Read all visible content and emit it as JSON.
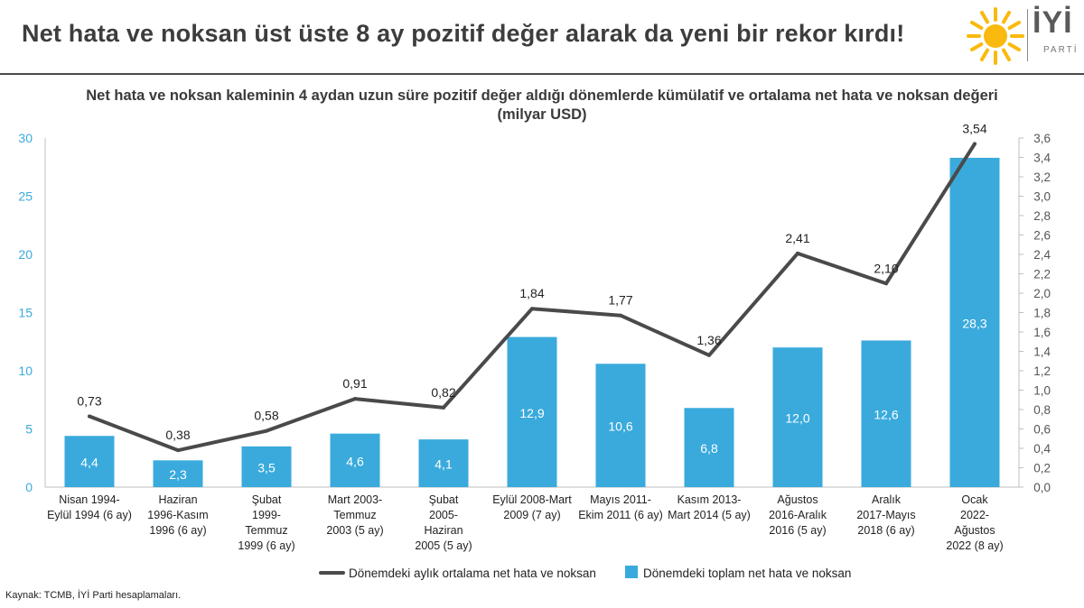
{
  "header": {
    "headline": "Net hata ve noksan üst üste 8 ay pozitif değer alarak da yeni bir rekor kırdı!",
    "logo_text": "İYİ",
    "logo_sub": "PARTİ",
    "accent_color": "#f9b90e"
  },
  "chart_data": {
    "type": "bar",
    "title": "Net hata ve noksan kaleminin 4 aydan uzun süre pozitif değer aldığı dönemlerde kümülatif ve ortalama net hata ve noksan değeri",
    "subtitle": "(milyar USD)",
    "categories": [
      [
        "Nisan 1994-",
        "Eylül 1994 (6 ay)"
      ],
      [
        "Haziran",
        "1996-Kasım",
        "1996 (6 ay)"
      ],
      [
        "Şubat",
        "1999-",
        "Temmuz",
        "1999 (6 ay)"
      ],
      [
        "Mart 2003-",
        "Temmuz",
        "2003 (5 ay)"
      ],
      [
        "Şubat",
        "2005-",
        "Haziran",
        "2005 (5 ay)"
      ],
      [
        "Eylül 2008-Mart",
        "2009 (7 ay)"
      ],
      [
        "Mayıs 2011-",
        "Ekim 2011 (6 ay)"
      ],
      [
        "Kasım 2013-",
        "Mart 2014 (5 ay)"
      ],
      [
        "Ağustos",
        "2016-Aralık",
        "2016 (5 ay)"
      ],
      [
        "Aralık",
        "2017-Mayıs",
        "2018 (6 ay)"
      ],
      [
        "Ocak",
        "2022-",
        "Ağustos",
        "2022 (8 ay)"
      ]
    ],
    "series": [
      {
        "name": "Dönemdeki toplam net hata ve noksan",
        "kind": "bar",
        "axis": "left",
        "color": "#3aaadc",
        "values": [
          4.4,
          2.3,
          3.5,
          4.6,
          4.1,
          12.9,
          10.6,
          6.8,
          12.0,
          12.6,
          28.3
        ],
        "labels": [
          "4,4",
          "2,3",
          "3,5",
          "4,6",
          "4,1",
          "12,9",
          "10,6",
          "6,8",
          "12,0",
          "12,6",
          "28,3"
        ]
      },
      {
        "name": "Dönemdeki aylık ortalama net hata ve noksan",
        "kind": "line",
        "axis": "right",
        "color": "#4a4a4a",
        "values": [
          0.73,
          0.38,
          0.58,
          0.91,
          0.82,
          1.84,
          1.77,
          1.36,
          2.41,
          2.1,
          3.54
        ],
        "labels": [
          "0,73",
          "0,38",
          "0,58",
          "0,91",
          "0,82",
          "1,84",
          "1,77",
          "1,36",
          "2,41",
          "2,10",
          "3,54"
        ]
      }
    ],
    "y_left": {
      "ylim": [
        0,
        30
      ],
      "ticks": [
        0,
        5,
        10,
        15,
        20,
        25,
        30
      ],
      "tick_labels": [
        "0",
        "5",
        "10",
        "15",
        "20",
        "25",
        "30"
      ],
      "tick_color": "#3aaadc"
    },
    "y_right": {
      "ylim": [
        0,
        3.6
      ],
      "ticks": [
        0,
        0.2,
        0.4,
        0.6,
        0.8,
        1.0,
        1.2,
        1.4,
        1.6,
        1.8,
        2.0,
        2.2,
        2.4,
        2.6,
        2.8,
        3.0,
        3.2,
        3.4,
        3.6
      ],
      "tick_labels": [
        "0,0",
        "0,2",
        "0,4",
        "0,6",
        "0,8",
        "1,0",
        "1,2",
        "1,4",
        "1,6",
        "1,8",
        "2,0",
        "2,2",
        "2,4",
        "2,6",
        "2,8",
        "3,0",
        "3,2",
        "3,4",
        "3,6"
      ]
    },
    "grid": false,
    "legend_position": "bottom-center"
  },
  "source": "Kaynak: TCMB, İYİ Parti hesaplamaları."
}
